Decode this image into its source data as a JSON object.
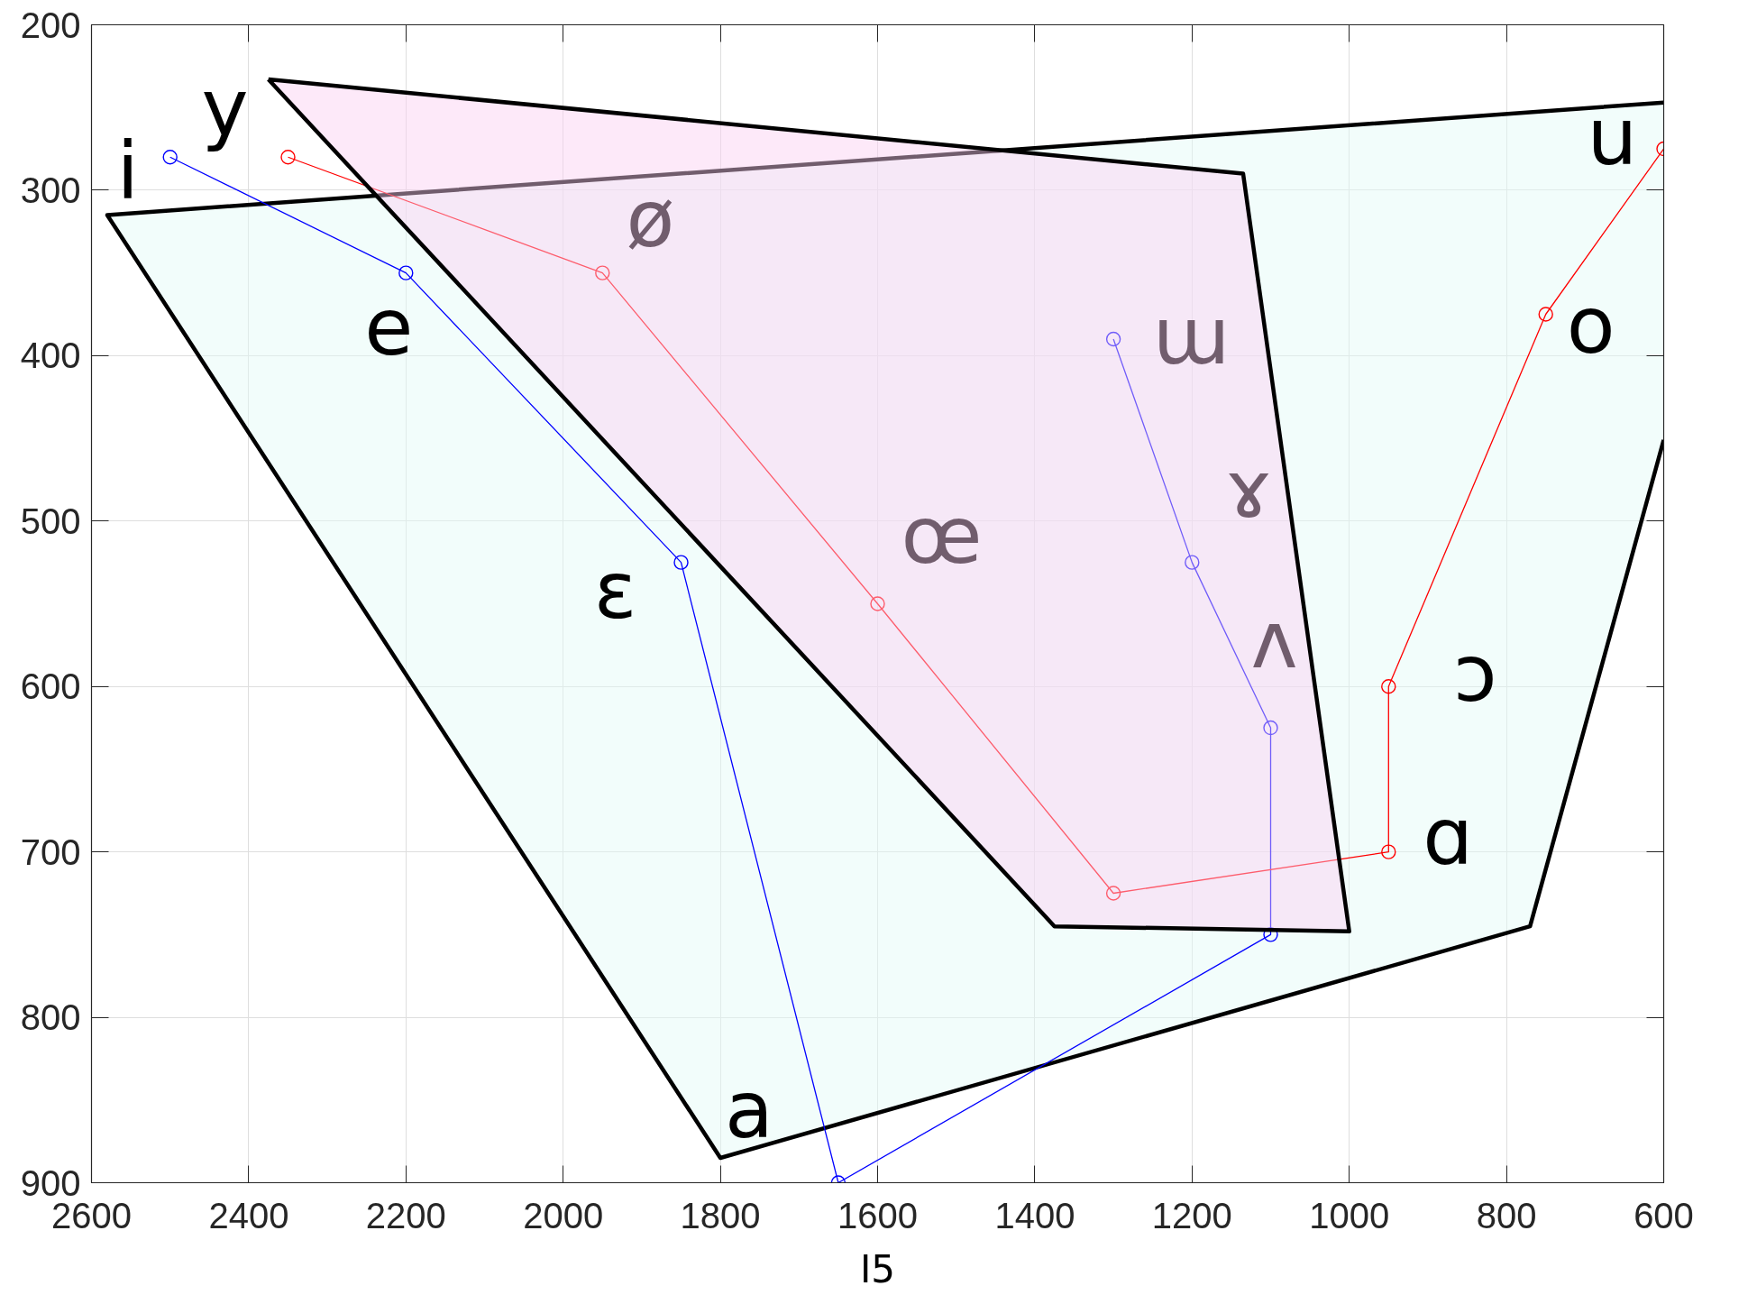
{
  "chart_data": {
    "type": "line",
    "xlabel": "I5",
    "xlim": [
      2600,
      600
    ],
    "ylim": [
      900,
      200
    ],
    "xticks": [
      2600,
      2400,
      2200,
      2000,
      1800,
      1600,
      1400,
      1200,
      1000,
      800,
      600
    ],
    "yticks": [
      200,
      300,
      400,
      500,
      600,
      700,
      800,
      900
    ],
    "grid": true,
    "line_style": "solid",
    "series": [
      {
        "type": "area",
        "color": "#f2fdfb",
        "x": [
          2580,
          1800,
          770,
          600,
          600
        ],
        "values": [
          315,
          885,
          745,
          451,
          247
        ]
      },
      {
        "color": "#0000ff",
        "marker": "circle",
        "x": [
          2500,
          2200,
          1850,
          1650,
          1100,
          1100,
          1200,
          1300
        ],
        "values": [
          280,
          350,
          525,
          900,
          750,
          625,
          525,
          390
        ],
        "value_labels": [
          "i",
          "e",
          "ɛ",
          "a",
          null,
          "ʌ",
          "ɤ",
          "ɯ"
        ]
      },
      {
        "color": "#ff0000",
        "marker": "circle",
        "x": [
          2350,
          1950,
          1600,
          1300,
          950,
          950,
          750,
          600
        ],
        "values": [
          280,
          350,
          550,
          725,
          700,
          600,
          375,
          275
        ],
        "value_labels": [
          "y",
          "ø",
          "œ",
          null,
          "ɑ",
          "ɔ",
          "o",
          "u"
        ]
      },
      {
        "type": "area",
        "color": "#fde9f9",
        "x": [
          2375,
          1135,
          1000,
          1375
        ],
        "values": [
          233,
          290,
          748,
          745
        ]
      }
    ]
  }
}
